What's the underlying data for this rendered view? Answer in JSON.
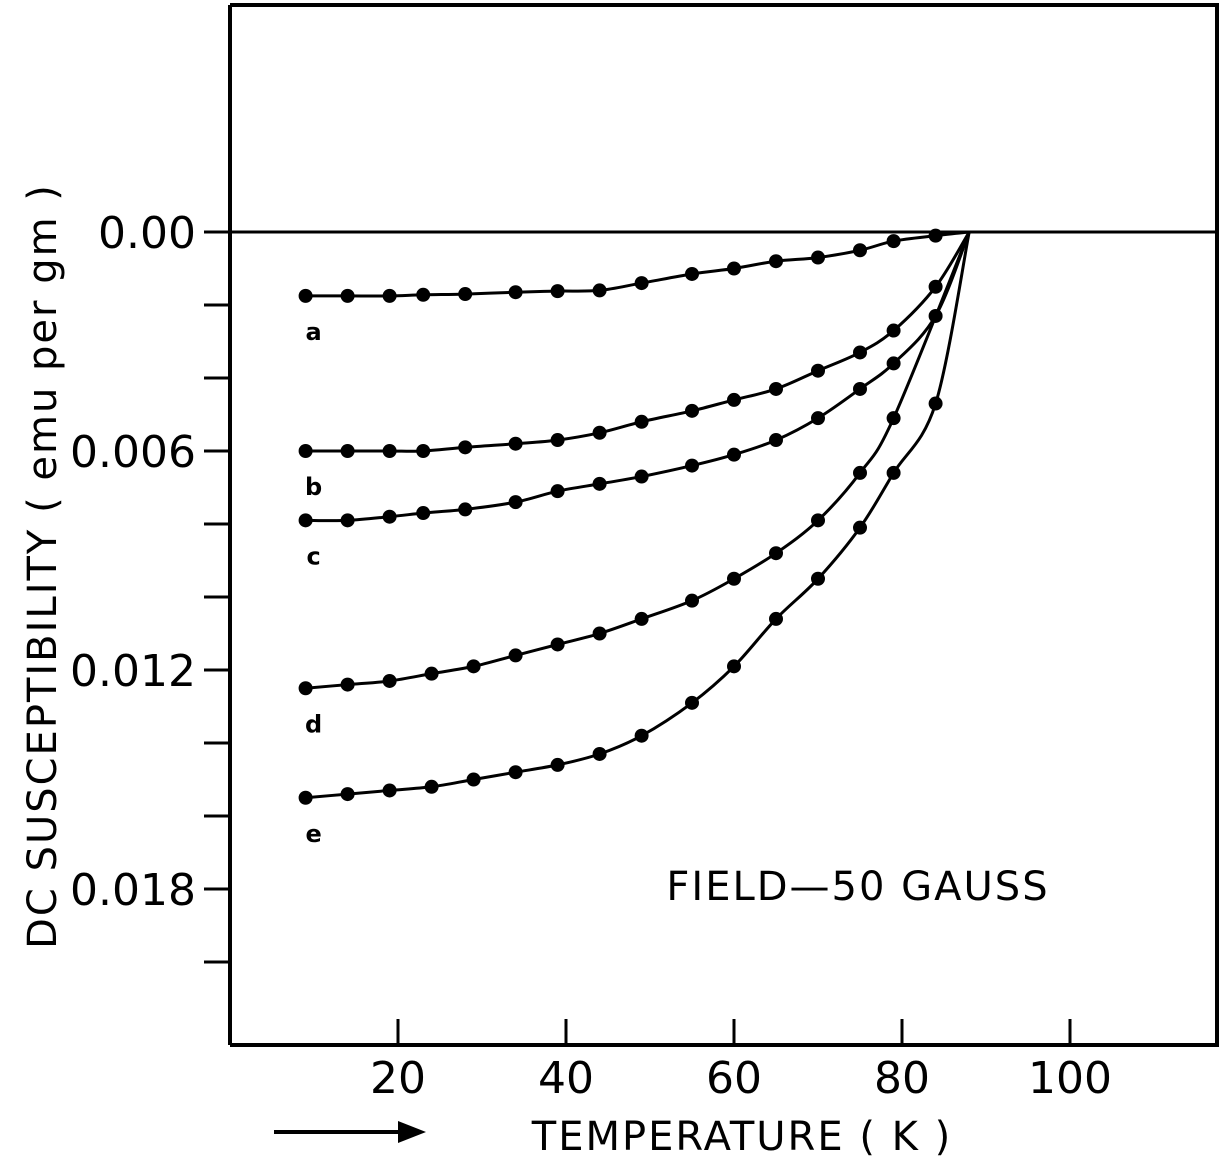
{
  "chart_data": {
    "type": "scatter",
    "title": "",
    "xlabel": "TEMPERATURE ( K )",
    "ylabel": "DC SUSCEPTIBILITY ( emu per gm )",
    "xlim": [
      0,
      117
    ],
    "ylim": [
      0.0225,
      -0.0062
    ],
    "y_inverted": true,
    "x_ticks": [
      20,
      40,
      60,
      80,
      100
    ],
    "x_tick_labels": [
      "20",
      "40",
      "60",
      "80",
      "100"
    ],
    "y_major_ticks": [
      0.0,
      0.006,
      0.012,
      0.018
    ],
    "y_tick_labels": [
      "0.00",
      "0.006",
      "0.012",
      "0.018"
    ],
    "y_minor_ticks": [
      0.002,
      0.004,
      0.008,
      0.01,
      0.014,
      0.016,
      0.02
    ],
    "grid": false,
    "annotation": "FIELD—50 GAUSS",
    "series": [
      {
        "name": "a",
        "x": [
          9,
          14,
          19,
          23,
          28,
          34,
          39,
          44,
          49,
          55,
          60,
          65,
          70,
          75,
          79,
          84
        ],
        "y": [
          0.00175,
          0.00175,
          0.00175,
          0.00172,
          0.0017,
          0.00165,
          0.00162,
          0.0016,
          0.0014,
          0.00115,
          0.001,
          0.0008,
          0.0007,
          0.0005,
          0.00025,
          0.0001
        ]
      },
      {
        "name": "b",
        "x": [
          9,
          14,
          19,
          23,
          28,
          34,
          39,
          44,
          49,
          55,
          60,
          65,
          70,
          75,
          79,
          84
        ],
        "y": [
          0.006,
          0.006,
          0.006,
          0.006,
          0.0059,
          0.0058,
          0.0057,
          0.0055,
          0.0052,
          0.0049,
          0.0046,
          0.0043,
          0.0038,
          0.0033,
          0.0027,
          0.0015
        ]
      },
      {
        "name": "c",
        "x": [
          9,
          14,
          19,
          23,
          28,
          34,
          39,
          44,
          49,
          55,
          60,
          65,
          70,
          75,
          79,
          84
        ],
        "y": [
          0.0079,
          0.0079,
          0.0078,
          0.0077,
          0.0076,
          0.0074,
          0.0071,
          0.0069,
          0.0067,
          0.0064,
          0.0061,
          0.0057,
          0.0051,
          0.0043,
          0.0036,
          0.0023
        ]
      },
      {
        "name": "d",
        "x": [
          9,
          14,
          19,
          24,
          29,
          34,
          39,
          44,
          49,
          55,
          60,
          65,
          70,
          75,
          79
        ],
        "y": [
          0.0125,
          0.0124,
          0.0123,
          0.0121,
          0.0119,
          0.0116,
          0.0113,
          0.011,
          0.0106,
          0.0101,
          0.0095,
          0.0088,
          0.0079,
          0.0066,
          0.0051
        ]
      },
      {
        "name": "e",
        "x": [
          9,
          14,
          19,
          24,
          29,
          34,
          39,
          44,
          49,
          55,
          60,
          65,
          70,
          75,
          79,
          84
        ],
        "y": [
          0.0155,
          0.0154,
          0.0153,
          0.0152,
          0.015,
          0.0148,
          0.0146,
          0.0143,
          0.0138,
          0.0129,
          0.0119,
          0.0106,
          0.0095,
          0.0081,
          0.0066,
          0.0047
        ]
      }
    ],
    "convergence_point": {
      "x": 88,
      "y": 0.0
    }
  }
}
